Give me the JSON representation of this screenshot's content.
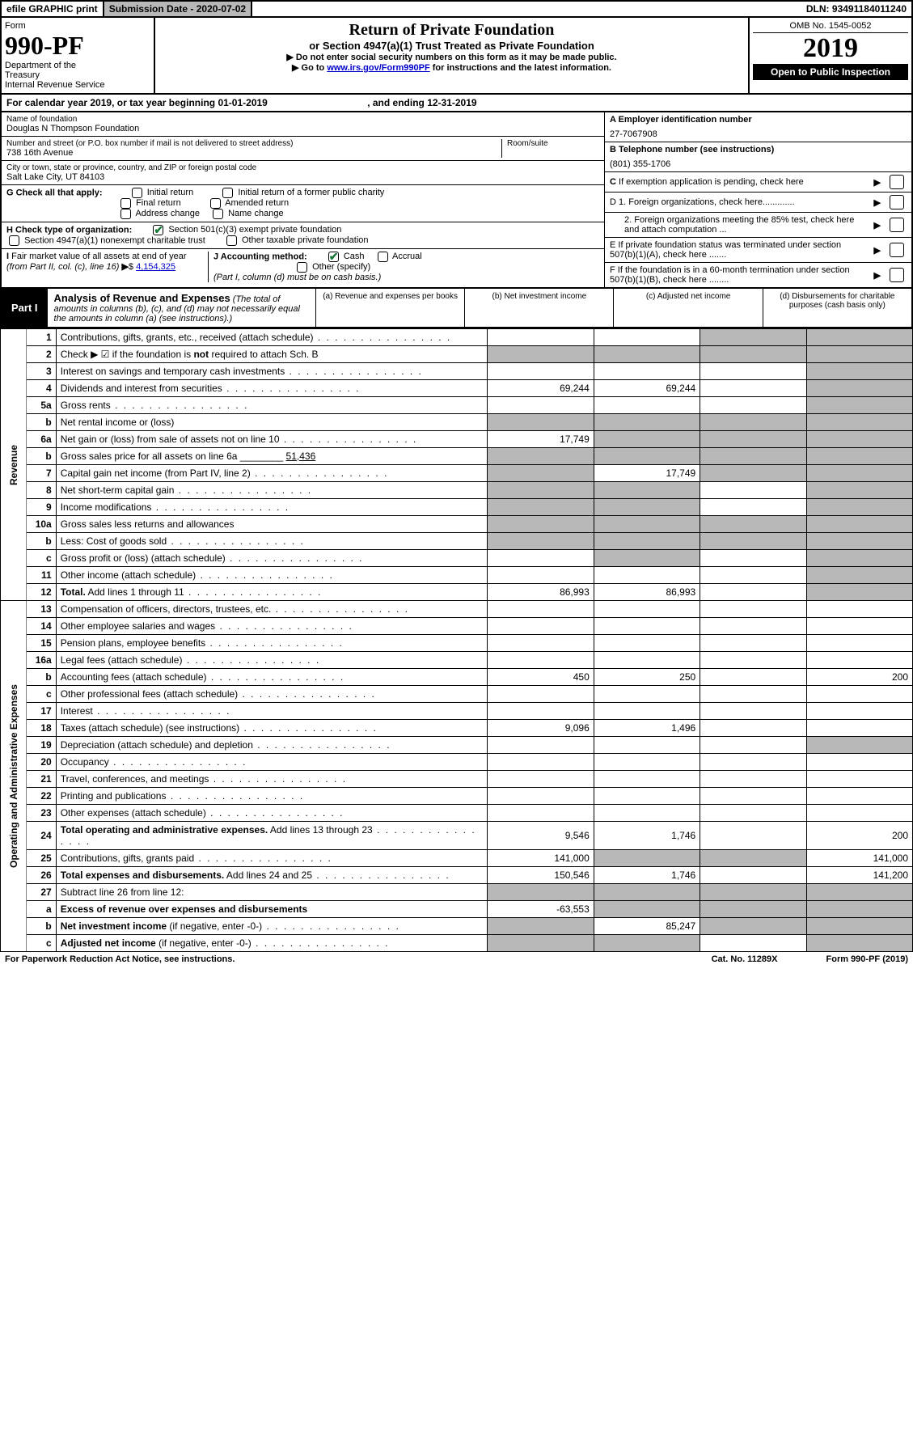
{
  "topbar": {
    "efile": "efile GRAPHIC print",
    "subdate_label": "Submission Date - ",
    "subdate": "2020-07-02",
    "dln_label": "DLN: ",
    "dln": "93491184011240"
  },
  "header": {
    "form_label": "Form",
    "form_num": "990-PF",
    "dept": "Department of the Treasury\nInternal Revenue Service",
    "title1": "Return of Private Foundation",
    "title2": "or Section 4947(a)(1) Trust Treated as Private Foundation",
    "instr1": "▶ Do not enter social security numbers on this form as it may be made public.",
    "instr2_pre": "▶ Go to ",
    "instr2_link": "www.irs.gov/Form990PF",
    "instr2_post": " for instructions and the latest information.",
    "omb": "OMB No. 1545-0052",
    "year": "2019",
    "open": "Open to Public Inspection"
  },
  "calrow": {
    "pre": "For calendar year 2019, or tax year beginning ",
    "begin": "01-01-2019",
    "mid": ", and ending ",
    "end": "12-31-2019"
  },
  "info": {
    "name_lbl": "Name of foundation",
    "name": "Douglas N Thompson Foundation",
    "addr_lbl": "Number and street (or P.O. box number if mail is not delivered to street address)",
    "addr": "738 16th Avenue",
    "room_lbl": "Room/suite",
    "city_lbl": "City or town, state or province, country, and ZIP or foreign postal code",
    "city": "Salt Lake City, UT  84103",
    "ein_lbl": "A Employer identification number",
    "ein": "27-7067908",
    "phone_lbl": "B Telephone number (see instructions)",
    "phone": "(801) 355-1706",
    "c_lbl": "C If exemption application is pending, check here",
    "g_lbl": "G Check all that apply:",
    "g_opts": [
      "Initial return",
      "Initial return of a former public charity",
      "Final return",
      "Amended return",
      "Address change",
      "Name change"
    ],
    "h_lbl": "H Check type of organization:",
    "h_opt1": "Section 501(c)(3) exempt private foundation",
    "h_opt2": "Section 4947(a)(1) nonexempt charitable trust",
    "h_opt3": "Other taxable private foundation",
    "i_lbl": "I Fair market value of all assets at end of year (from Part II, col. (c), line 16) ▶$",
    "i_val": "4,154,325",
    "j_lbl": "J Accounting method:",
    "j_cash": "Cash",
    "j_accrual": "Accrual",
    "j_other": "Other (specify)",
    "j_note": "(Part I, column (d) must be on cash basis.)",
    "d1": "D 1. Foreign organizations, check here.............",
    "d2": "2. Foreign organizations meeting the 85% test, check here and attach computation ...",
    "e_lbl": "E  If private foundation status was terminated under section 507(b)(1)(A), check here .......",
    "f_lbl": "F  If the foundation is in a 60-month termination under section 507(b)(1)(B), check here ........"
  },
  "part1": {
    "badge": "Part I",
    "title": "Analysis of Revenue and Expenses",
    "note": " (The total of amounts in columns (b), (c), and (d) may not necessarily equal the amounts in column (a) (see instructions).)",
    "cols": [
      "(a)   Revenue and expenses per books",
      "(b)  Net investment income",
      "(c)  Adjusted net income",
      "(d)  Disbursements for charitable purposes (cash basis only)"
    ]
  },
  "sections": {
    "revenue": "Revenue",
    "expenses": "Operating and Administrative Expenses"
  },
  "lines": [
    {
      "sec": "rev",
      "n": "1",
      "d": "Contributions, gifts, grants, etc., received (attach schedule)",
      "a": "",
      "b": "",
      "c": "",
      "ds": "c,d"
    },
    {
      "sec": "rev",
      "n": "2",
      "d": "Check ▶ ☑ if the foundation is <b>not</b> required to attach Sch. B",
      "a": "",
      "b": "",
      "c": "",
      "ds": "a,b,c,d",
      "nodots": true
    },
    {
      "sec": "rev",
      "n": "3",
      "d": "Interest on savings and temporary cash investments",
      "a": "",
      "b": "",
      "c": "",
      "ds": "d"
    },
    {
      "sec": "rev",
      "n": "4",
      "d": "Dividends and interest from securities",
      "a": "69,244",
      "b": "69,244",
      "c": "",
      "ds": "d"
    },
    {
      "sec": "rev",
      "n": "5a",
      "d": "Gross rents",
      "a": "",
      "b": "",
      "c": "",
      "ds": "d"
    },
    {
      "sec": "rev",
      "n": "b",
      "d": "Net rental income or (loss)",
      "a": "",
      "b": "",
      "c": "",
      "ds": "a,b,c,d",
      "nodots": true
    },
    {
      "sec": "rev",
      "n": "6a",
      "d": "Net gain or (loss) from sale of assets not on line 10",
      "a": "17,749",
      "b": "",
      "c": "",
      "ds": "b,c,d"
    },
    {
      "sec": "rev",
      "n": "b",
      "d": "Gross sales price for all assets on line 6a ________ <u>51,436</u>",
      "a": "",
      "b": "",
      "c": "",
      "ds": "a,b,c,d",
      "nodots": true
    },
    {
      "sec": "rev",
      "n": "7",
      "d": "Capital gain net income (from Part IV, line 2)",
      "a": "",
      "b": "17,749",
      "c": "",
      "ds": "a,c,d"
    },
    {
      "sec": "rev",
      "n": "8",
      "d": "Net short-term capital gain",
      "a": "",
      "b": "",
      "c": "",
      "ds": "a,b,d"
    },
    {
      "sec": "rev",
      "n": "9",
      "d": "Income modifications",
      "a": "",
      "b": "",
      "c": "",
      "ds": "a,b,d"
    },
    {
      "sec": "rev",
      "n": "10a",
      "d": "Gross sales less returns and allowances",
      "a": "",
      "b": "",
      "c": "",
      "ds": "a,b,c,d",
      "nodots": true
    },
    {
      "sec": "rev",
      "n": "b",
      "d": "Less: Cost of goods sold",
      "a": "",
      "b": "",
      "c": "",
      "ds": "a,b,c,d"
    },
    {
      "sec": "rev",
      "n": "c",
      "d": "Gross profit or (loss) (attach schedule)",
      "a": "",
      "b": "",
      "c": "",
      "ds": "b,d"
    },
    {
      "sec": "rev",
      "n": "11",
      "d": "Other income (attach schedule)",
      "a": "",
      "b": "",
      "c": "",
      "ds": "d"
    },
    {
      "sec": "rev",
      "n": "12",
      "d": "<b>Total.</b> Add lines 1 through 11",
      "a": "86,993",
      "b": "86,993",
      "c": "",
      "ds": "d"
    },
    {
      "sec": "exp",
      "n": "13",
      "d": "Compensation of officers, directors, trustees, etc.",
      "a": "",
      "b": "",
      "c": "",
      "ds": ""
    },
    {
      "sec": "exp",
      "n": "14",
      "d": "Other employee salaries and wages",
      "a": "",
      "b": "",
      "c": "",
      "ds": ""
    },
    {
      "sec": "exp",
      "n": "15",
      "d": "Pension plans, employee benefits",
      "a": "",
      "b": "",
      "c": "",
      "ds": ""
    },
    {
      "sec": "exp",
      "n": "16a",
      "d": "Legal fees (attach schedule)",
      "a": "",
      "b": "",
      "c": "",
      "ds": ""
    },
    {
      "sec": "exp",
      "n": "b",
      "d": "Accounting fees (attach schedule)",
      "a": "450",
      "b": "250",
      "c": "",
      "dval": "200",
      "ds": ""
    },
    {
      "sec": "exp",
      "n": "c",
      "d": "Other professional fees (attach schedule)",
      "a": "",
      "b": "",
      "c": "",
      "ds": ""
    },
    {
      "sec": "exp",
      "n": "17",
      "d": "Interest",
      "a": "",
      "b": "",
      "c": "",
      "ds": ""
    },
    {
      "sec": "exp",
      "n": "18",
      "d": "Taxes (attach schedule) (see instructions)",
      "a": "9,096",
      "b": "1,496",
      "c": "",
      "ds": ""
    },
    {
      "sec": "exp",
      "n": "19",
      "d": "Depreciation (attach schedule) and depletion",
      "a": "",
      "b": "",
      "c": "",
      "ds": "d"
    },
    {
      "sec": "exp",
      "n": "20",
      "d": "Occupancy",
      "a": "",
      "b": "",
      "c": "",
      "ds": ""
    },
    {
      "sec": "exp",
      "n": "21",
      "d": "Travel, conferences, and meetings",
      "a": "",
      "b": "",
      "c": "",
      "ds": ""
    },
    {
      "sec": "exp",
      "n": "22",
      "d": "Printing and publications",
      "a": "",
      "b": "",
      "c": "",
      "ds": ""
    },
    {
      "sec": "exp",
      "n": "23",
      "d": "Other expenses (attach schedule)",
      "a": "",
      "b": "",
      "c": "",
      "ds": ""
    },
    {
      "sec": "exp",
      "n": "24",
      "d": "<b>Total operating and administrative expenses.</b> Add lines 13 through 23",
      "a": "9,546",
      "b": "1,746",
      "c": "",
      "dval": "200",
      "ds": ""
    },
    {
      "sec": "exp",
      "n": "25",
      "d": "Contributions, gifts, grants paid",
      "a": "141,000",
      "b": "",
      "c": "",
      "dval": "141,000",
      "ds": "b,c"
    },
    {
      "sec": "exp",
      "n": "26",
      "d": "<b>Total expenses and disbursements.</b> Add lines 24 and 25",
      "a": "150,546",
      "b": "1,746",
      "c": "",
      "dval": "141,200",
      "ds": ""
    },
    {
      "sec": "exp",
      "n": "27",
      "d": "Subtract line 26 from line 12:",
      "a": "",
      "b": "",
      "c": "",
      "ds": "a,b,c,d",
      "nodots": true
    },
    {
      "sec": "exp",
      "n": "a",
      "d": "<b>Excess of revenue over expenses and disbursements</b>",
      "a": "-63,553",
      "b": "",
      "c": "",
      "ds": "b,c,d",
      "nodots": true
    },
    {
      "sec": "exp",
      "n": "b",
      "d": "<b>Net investment income</b> (if negative, enter -0-)",
      "a": "",
      "b": "85,247",
      "c": "",
      "ds": "a,c,d"
    },
    {
      "sec": "exp",
      "n": "c",
      "d": "<b>Adjusted net income</b> (if negative, enter -0-)",
      "a": "",
      "b": "",
      "c": "",
      "ds": "a,b,d"
    }
  ],
  "footer": {
    "left": "For Paperwork Reduction Act Notice, see instructions.",
    "mid": "Cat. No. 11289X",
    "right": "Form 990-PF (2019)"
  }
}
